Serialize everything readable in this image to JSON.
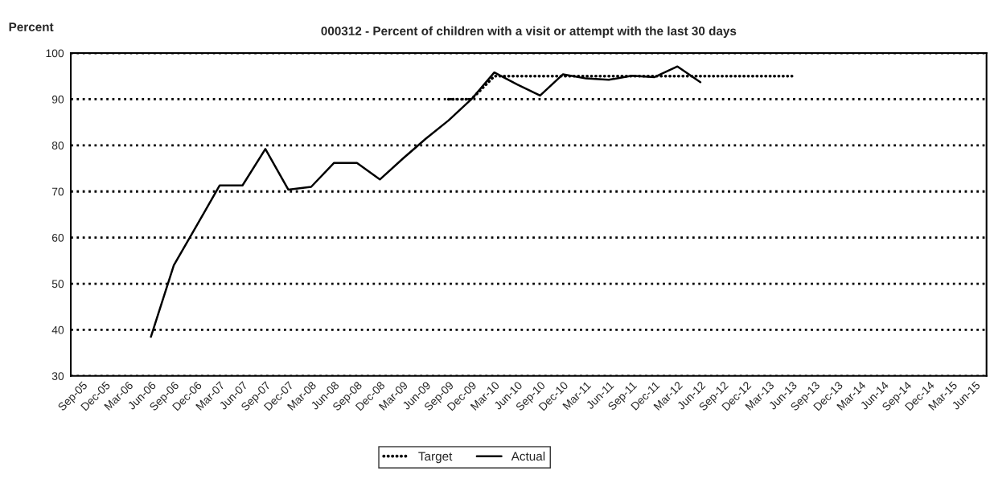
{
  "chart_data": {
    "type": "line",
    "title": "000312 - Percent of children with a visit or attempt with the last 30 days",
    "ylabel": "Percent",
    "categories": [
      "Sep-05",
      "Dec-05",
      "Mar-06",
      "Jun-06",
      "Sep-06",
      "Dec-06",
      "Mar-07",
      "Jun-07",
      "Sep-07",
      "Dec-07",
      "Mar-08",
      "Jun-08",
      "Sep-08",
      "Dec-08",
      "Mar-09",
      "Jun-09",
      "Sep-09",
      "Dec-09",
      "Mar-10",
      "Jun-10",
      "Sep-10",
      "Dec-10",
      "Mar-11",
      "Jun-11",
      "Sep-11",
      "Dec-11",
      "Mar-12",
      "Jun-12",
      "Sep-12",
      "Dec-12",
      "Mar-13",
      "Jun-13",
      "Sep-13",
      "Dec-13",
      "Mar-14",
      "Jun-14",
      "Sep-14",
      "Dec-14",
      "Mar-15",
      "Jun-15"
    ],
    "series": [
      {
        "name": "Target",
        "color": "#000000",
        "line_style": "dotted",
        "values": [
          null,
          null,
          null,
          null,
          null,
          null,
          null,
          null,
          null,
          null,
          null,
          null,
          null,
          null,
          null,
          null,
          90,
          90,
          95,
          95,
          95,
          95,
          95,
          95,
          95,
          95,
          95,
          95,
          95,
          95,
          95,
          95,
          null,
          null,
          null,
          null,
          null,
          null,
          null,
          null
        ]
      },
      {
        "name": "Actual",
        "color": "#000000",
        "line_style": "solid",
        "values": [
          null,
          null,
          null,
          38.5,
          54,
          62.6,
          71.3,
          71.3,
          79.2,
          70.4,
          71,
          76.2,
          76.2,
          72.6,
          77.1,
          81.4,
          85.4,
          90,
          95.8,
          93.2,
          90.8,
          95.4,
          94.5,
          94.2,
          95.1,
          94.8,
          97.1,
          93.7,
          null,
          null,
          null,
          null,
          null,
          null,
          null,
          null,
          null,
          null,
          null,
          null
        ]
      }
    ],
    "ylim": [
      30,
      100
    ],
    "yticks": [
      30,
      40,
      50,
      60,
      70,
      80,
      90,
      100
    ],
    "grid": "y",
    "legend": "bottom"
  }
}
